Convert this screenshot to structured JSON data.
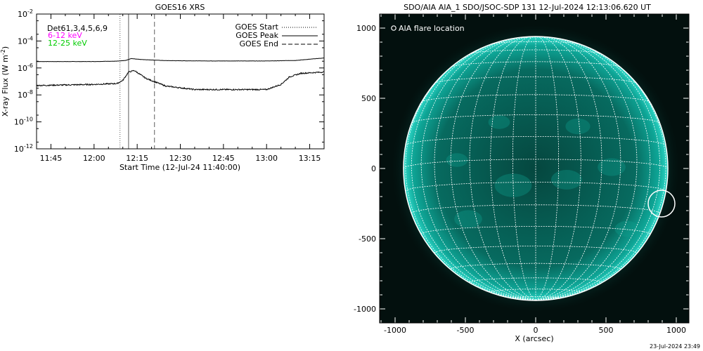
{
  "left_panel": {
    "title": "GOES16 XRS",
    "ylabel_main": "X-ray Flux (W m",
    "ylabel_sup": "-2",
    "ylabel_close": ")",
    "xlabel": "Start Time (12-Jul-24 11:40:00)",
    "det_label": "Det61,3,4,5,6,9",
    "band1_label": "6-12 keV",
    "band2_label": "12-25 keV",
    "legend": {
      "start": "GOES Start",
      "peak": "GOES Peak",
      "end": "GOES End"
    }
  },
  "right_panel": {
    "title": "SDO/AIA AIA_1 SDO/JSOC-SDP 131 12-Jul-2024 12:13:06.620 UT",
    "legend_label": "AIA flare location",
    "xlabel": "X (arcsec)"
  },
  "footer": {
    "timestamp": "23-Jul-2024 23:49"
  },
  "colors": {
    "band1": "#ff00ff",
    "band2": "#00ff00",
    "sun_teal": "#00b4a8",
    "background_dark": "#03100e"
  },
  "chart_data": [
    {
      "type": "line",
      "title": "GOES16 XRS",
      "xlabel": "Start Time (12-Jul-24 11:40:00)",
      "ylabel": "X-ray Flux (W m^-2)",
      "y_scale": "log",
      "xlim": [
        "11:40",
        "13:20"
      ],
      "ylim": [
        1e-12,
        0.01
      ],
      "x_ticks": [
        "11:45",
        "12:00",
        "12:15",
        "12:30",
        "12:45",
        "13:00",
        "13:15"
      ],
      "y_ticks": [
        "10^-12",
        "10^-10",
        "10^-8",
        "10^-6",
        "10^-4",
        "10^-2"
      ],
      "series": [
        {
          "x": [
            "11:40",
            "12:00",
            "12:08",
            "12:11",
            "12:13",
            "12:16",
            "12:25",
            "12:40",
            "13:00",
            "13:10",
            "13:20"
          ],
          "values": [
            3e-06,
            3e-06,
            3.2e-06,
            3.6e-06,
            5e-06,
            4.3e-06,
            3.5e-06,
            3.3e-06,
            3.3e-06,
            3.6e-06,
            5.5e-06
          ]
        },
        {
          "x": [
            "11:40",
            "12:00",
            "12:08",
            "12:10",
            "12:12",
            "12:14",
            "12:18",
            "12:25",
            "12:35",
            "13:00",
            "13:05",
            "13:08",
            "13:12",
            "13:20"
          ],
          "values": [
            5e-08,
            6e-08,
            7e-08,
            1.2e-07,
            5e-07,
            6.5e-07,
            1.7e-07,
            4.5e-08,
            2.5e-08,
            2.5e-08,
            6e-08,
            2.2e-07,
            4e-07,
            5e-07
          ]
        }
      ],
      "vertical_lines": [
        {
          "name": "GOES Start",
          "x": "12:09",
          "style": "dotted"
        },
        {
          "name": "GOES Peak",
          "x": "12:12",
          "style": "solid"
        },
        {
          "name": "GOES End",
          "x": "12:21",
          "style": "dashed"
        }
      ],
      "legend": [
        "GOES Start",
        "GOES Peak",
        "GOES End"
      ],
      "legend_position": "top-right"
    },
    {
      "type": "scatter",
      "title": "SDO/AIA AIA_1 SDO/JSOC-SDP 131 12-Jul-2024 12:13:06.620 UT",
      "xlabel": "X (arcsec)",
      "ylabel": "",
      "xlim": [
        -1100,
        1100
      ],
      "ylim": [
        -1100,
        1000
      ],
      "x_ticks": [
        -1000,
        -500,
        0,
        500,
        1000
      ],
      "y_ticks": [
        -1000,
        -500,
        0,
        500,
        1000
      ],
      "solar_radius_arcsec": 940,
      "grid_spacing_deg": 10,
      "flare_location": {
        "x": 895,
        "y": -250
      },
      "legend": [
        "AIA flare location"
      ],
      "legend_position": "top-left"
    }
  ]
}
